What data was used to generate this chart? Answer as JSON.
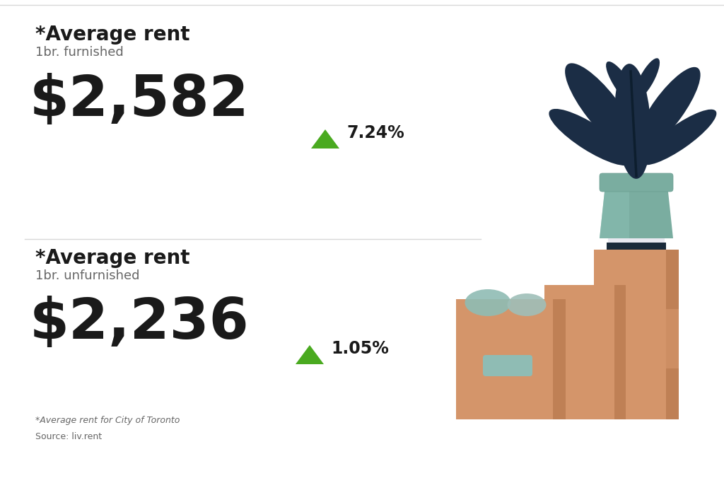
{
  "bg_color": "#ffffff",
  "divider_color": "#d8d8d8",
  "text_color_dark": "#1a1a1a",
  "text_color_gray": "#666666",
  "green_color": "#4aaa20",
  "section1": {
    "title": "*Average rent",
    "subtitle": "1br. furnished",
    "value": "$2,582",
    "change": "7.24%"
  },
  "section2": {
    "title": "*Average rent",
    "subtitle": "1br. unfurnished",
    "value": "$2,236",
    "change": "1.05%"
  },
  "footnote": "*Average rent for City of Toronto",
  "source": "Source: liv.rent",
  "title_fontsize": 20,
  "subtitle_fontsize": 13,
  "value_fontsize": 58,
  "change_fontsize": 17,
  "footnote_fontsize": 9,
  "source_fontsize": 9,
  "box_color": "#D4956A",
  "box_shadow": "#BF8055",
  "box_highlight": "#E8AA80",
  "teal_color": "#8FBCB4",
  "pot_color": "#7AADA0",
  "pot_rim_color": "#6A9D90",
  "leaf_color": "#1B2D45",
  "book_color": "#1a2a3a",
  "book_light": "#e8e8f0"
}
